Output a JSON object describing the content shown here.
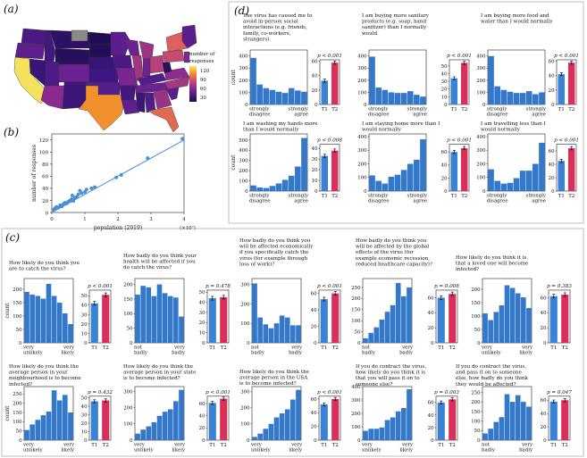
{
  "panel_letters": {
    "a": "(a)",
    "b": "(b)",
    "c": "(c)",
    "d": "(d)"
  },
  "map": {
    "legend_title": "number of responses",
    "legend_ticks": [
      "120",
      "90",
      "60",
      "30"
    ]
  },
  "chart_data": [
    {
      "id": "b",
      "type": "scatter",
      "xlabel": "population (2019)",
      "x_exponent": "(×10⁷)",
      "ylabel": "number of responses",
      "xlim": [
        0,
        4
      ],
      "ylim": [
        0,
        130
      ],
      "xticks": [
        0,
        1,
        2,
        3,
        4
      ],
      "yticks": [
        0,
        20,
        40,
        60,
        80,
        100,
        120
      ],
      "x": [
        0.06,
        0.1,
        0.14,
        0.2,
        0.25,
        0.3,
        0.35,
        0.4,
        0.45,
        0.5,
        0.55,
        0.6,
        0.65,
        0.7,
        0.75,
        0.8,
        0.9,
        1.0,
        1.05,
        1.2,
        1.3,
        0.62,
        0.72,
        0.85,
        1.95,
        2.1,
        2.9,
        3.95
      ],
      "y": [
        5,
        7,
        9,
        8,
        12,
        10,
        14,
        16,
        15,
        18,
        20,
        22,
        19,
        24,
        26,
        30,
        32,
        34,
        38,
        40,
        42,
        28,
        25,
        36,
        58,
        62,
        90,
        122
      ],
      "fit": {
        "x": [
          0,
          4
        ],
        "y": [
          0,
          120
        ]
      }
    },
    {
      "id": "d1",
      "type": "bar",
      "question": [
        "The virus has caused me to",
        "avoid in-person social",
        "interactions (e.g. friends,",
        "family, co-workers,",
        "strangers)."
      ],
      "ylabel": "count",
      "ylim": [
        0,
        450
      ],
      "yticks": [
        0,
        100,
        200,
        300,
        400
      ],
      "values": [
        385,
        165,
        135,
        120,
        105,
        95,
        135,
        115,
        105
      ],
      "left_label": [
        "strongly",
        "disagree"
      ],
      "right_label": [
        "strongly",
        "agree"
      ],
      "t1t2": {
        "p": "p < 0.001",
        "T1": 33,
        "T2": 58,
        "ylim": [
          0,
          62
        ],
        "yticks": [
          0,
          20,
          40,
          60
        ],
        "labels": [
          "T1",
          "T2"
        ]
      }
    },
    {
      "id": "d2",
      "type": "bar",
      "question": [
        "I am buying more sanitary",
        "products (e.g. soap, hand",
        "sanitizer) than I normally",
        "would"
      ],
      "ylabel": "",
      "ylim": [
        0,
        450
      ],
      "yticks": [
        0,
        100,
        200,
        300,
        400
      ],
      "values": [
        395,
        140,
        120,
        100,
        95,
        95,
        110,
        80,
        65
      ],
      "left_label": [
        "strongly",
        "disagree"
      ],
      "right_label": [
        "strongly",
        "agree"
      ],
      "t1t2": {
        "p": "p < 0.001",
        "T1": 34,
        "T2": 54,
        "ylim": [
          0,
          58
        ],
        "yticks": [
          0,
          10,
          20,
          30,
          40,
          50
        ],
        "labels": [
          "T1",
          "T2"
        ]
      }
    },
    {
      "id": "d3",
      "type": "bar",
      "question": [
        "I am buying more food and",
        "water than I would normally"
      ],
      "ylabel": "",
      "ylim": [
        0,
        450
      ],
      "yticks": [
        0,
        100,
        200,
        300,
        400
      ],
      "values": [
        400,
        150,
        120,
        105,
        95,
        95,
        110,
        85,
        100
      ],
      "left_label": [
        "strongly",
        "disagree"
      ],
      "right_label": [
        "strongly",
        "agree"
      ],
      "t1t2": {
        "p": "p < 0.001",
        "T1": 42,
        "T2": 58,
        "ylim": [
          0,
          62
        ],
        "yticks": [
          0,
          20,
          40,
          60
        ],
        "labels": [
          "T1",
          "T2"
        ]
      }
    },
    {
      "id": "d4",
      "type": "bar",
      "question": [
        "I am washing my hands more",
        "than I would normally"
      ],
      "ylabel": "count",
      "ylim": [
        0,
        560
      ],
      "yticks": [
        0,
        100,
        200,
        300,
        400,
        500
      ],
      "values": [
        55,
        35,
        30,
        50,
        75,
        110,
        150,
        240,
        520
      ],
      "left_label": [
        "strongly",
        "disagree"
      ],
      "right_label": [
        "strongly",
        "agree"
      ],
      "t1t2": {
        "p": "p < 0.008",
        "T1": 33,
        "T2": 38,
        "ylim": [
          0,
          44
        ],
        "yticks": [
          0,
          10,
          20,
          30,
          40
        ],
        "labels": [
          "T1",
          "T2"
        ]
      }
    },
    {
      "id": "d5",
      "type": "bar",
      "question": [
        "I am staying home more than I",
        "would normally"
      ],
      "ylabel": "",
      "ylim": [
        0,
        420
      ],
      "yticks": [
        0,
        100,
        200,
        300,
        400
      ],
      "values": [
        115,
        75,
        55,
        105,
        120,
        155,
        200,
        230,
        380
      ],
      "left_label": [
        "strongly",
        "disagree"
      ],
      "right_label": [
        "strongly",
        "agree"
      ],
      "t1t2": {
        "p": "p < 0.001",
        "T1": 60,
        "T2": 66,
        "ylim": [
          0,
          72
        ],
        "yticks": [
          0,
          20,
          40,
          60
        ],
        "labels": [
          "T1",
          "T2"
        ]
      }
    },
    {
      "id": "d6",
      "type": "bar",
      "question": [
        "I am travelling less than I",
        "would normally"
      ],
      "ylabel": "",
      "ylim": [
        0,
        420
      ],
      "yticks": [
        0,
        100,
        200,
        300,
        400
      ],
      "values": [
        160,
        75,
        55,
        60,
        95,
        150,
        150,
        200,
        355
      ],
      "left_label": [
        "strongly",
        "disagree"
      ],
      "right_label": [
        "strongly",
        "agree"
      ],
      "t1t2": {
        "p": "p < 0.001",
        "T1": 45,
        "T2": 64,
        "ylim": [
          0,
          70
        ],
        "yticks": [
          0,
          20,
          40,
          60
        ],
        "labels": [
          "T1",
          "T2"
        ]
      }
    },
    {
      "id": "c1",
      "type": "bar",
      "question": [
        "How likely do you think you",
        "are to catch the virus?"
      ],
      "ylabel": "count",
      "ylim": [
        0,
        240
      ],
      "yticks": [
        0,
        50,
        100,
        150,
        200
      ],
      "values": [
        190,
        180,
        175,
        165,
        220,
        175,
        150,
        110,
        70
      ],
      "left_label": [
        "very",
        "unlikely"
      ],
      "right_label": [
        "very",
        "likely"
      ],
      "t1t2": {
        "p": "p < 0.001",
        "T1": 42,
        "T2": 51,
        "ylim": [
          0,
          56
        ],
        "yticks": [
          0,
          10,
          20,
          30,
          40,
          50
        ],
        "labels": [
          "T1",
          "T2"
        ]
      }
    },
    {
      "id": "c2",
      "type": "bar",
      "question": [
        "How badly do you think your",
        "health will be affected if you",
        "do catch the virus?"
      ],
      "ylabel": "",
      "ylim": [
        0,
        220
      ],
      "yticks": [
        0,
        50,
        100,
        150,
        200
      ],
      "values": [
        165,
        195,
        190,
        160,
        200,
        170,
        160,
        155,
        90
      ],
      "left_label": [
        "not",
        "badly"
      ],
      "right_label": [
        "very",
        "badly"
      ],
      "t1t2": {
        "p": "p = 0.478",
        "T1": 44,
        "T2": 45,
        "ylim": [
          0,
          52
        ],
        "yticks": [
          0,
          10,
          20,
          30,
          40,
          50
        ],
        "labels": [
          "T1",
          "T2"
        ]
      }
    },
    {
      "id": "c3",
      "type": "bar",
      "question": [
        "How badly do you think you",
        "will be affected economically",
        "if you specifically catch the",
        "virus (for example through",
        "loss of work)?"
      ],
      "ylabel": "",
      "ylim": [
        0,
        330
      ],
      "yticks": [
        0,
        100,
        200,
        300
      ],
      "values": [
        305,
        130,
        95,
        75,
        100,
        140,
        130,
        90,
        90
      ],
      "left_label": [
        "not",
        "badly"
      ],
      "right_label": [
        "very",
        "badly"
      ],
      "t1t2": {
        "p": "p < 0.001",
        "T1": 53,
        "T2": 60,
        "ylim": [
          0,
          64
        ],
        "yticks": [
          0,
          20,
          40,
          60
        ],
        "labels": [
          "T1",
          "T2"
        ]
      }
    },
    {
      "id": "c4",
      "type": "bar",
      "question": [
        "How badly do you think you",
        "will be affected by the global",
        "effects of the virus (for",
        "example economic recession,",
        "reduced healthcare capacity)?"
      ],
      "ylabel": "",
      "ylim": [
        0,
        290
      ],
      "yticks": [
        0,
        50,
        100,
        150,
        200,
        250
      ],
      "values": [
        20,
        45,
        70,
        105,
        140,
        170,
        270,
        210,
        250
      ],
      "left_label": [
        "not",
        "badly"
      ],
      "right_label": [
        "very",
        "badly"
      ],
      "t1t2": {
        "p": "p = 0.008",
        "T1": 60,
        "T2": 65,
        "ylim": [
          0,
          70
        ],
        "yticks": [
          0,
          20,
          40,
          60
        ],
        "labels": [
          "T1",
          "T2"
        ]
      }
    },
    {
      "id": "c5",
      "type": "bar",
      "question": [
        "How likely do you think it is",
        "that a loved one will become",
        "infected?"
      ],
      "ylabel": "",
      "ylim": [
        0,
        240
      ],
      "yticks": [
        0,
        50,
        100,
        150,
        200
      ],
      "values": [
        110,
        85,
        115,
        140,
        215,
        205,
        185,
        170,
        130
      ],
      "left_label": [
        "very",
        "unlikely"
      ],
      "right_label": [
        "very",
        "likely"
      ],
      "t1t2": {
        "p": "p = 0.383",
        "T1": 62,
        "T2": 64,
        "ylim": [
          0,
          70
        ],
        "yticks": [
          0,
          20,
          40,
          60
        ],
        "labels": [
          "T1",
          "T2"
        ]
      }
    },
    {
      "id": "c6",
      "type": "bar",
      "question": [
        "How likely do you think the",
        "average person in your",
        "neighbourhood is to become",
        "infected?"
      ],
      "ylabel": "count",
      "ylim": [
        0,
        290
      ],
      "yticks": [
        0,
        50,
        100,
        150,
        200,
        250
      ],
      "values": [
        55,
        85,
        110,
        135,
        155,
        270,
        215,
        245,
        150
      ],
      "left_label": [
        "very",
        "unlikely"
      ],
      "right_label": [
        "very",
        "likely"
      ],
      "t1t2": {
        "p": "p = 0.432",
        "T1": 46,
        "T2": 47,
        "ylim": [
          0,
          52
        ],
        "yticks": [
          0,
          10,
          20,
          30,
          40,
          50
        ],
        "labels": [
          "T1",
          "T2"
        ]
      }
    },
    {
      "id": "c7",
      "type": "bar",
      "question": [
        "How likely do you think the",
        "average person in your state",
        "is to become infected?"
      ],
      "ylabel": "",
      "ylim": [
        0,
        330
      ],
      "yticks": [
        0,
        100,
        200,
        300
      ],
      "values": [
        40,
        65,
        85,
        110,
        150,
        175,
        190,
        240,
        310
      ],
      "left_label": [
        "very",
        "unlikely"
      ],
      "right_label": [
        "very",
        "likely"
      ],
      "t1t2": {
        "p": "p < 0.001",
        "T1": 61,
        "T2": 68,
        "ylim": [
          0,
          72
        ],
        "yticks": [
          0,
          20,
          40,
          60
        ],
        "labels": [
          "T1",
          "T2"
        ]
      }
    },
    {
      "id": "c8",
      "type": "bar",
      "question": [
        "How likely do you think the",
        "average person in the USA",
        "is to become infected?"
      ],
      "ylabel": "",
      "ylim": [
        0,
        330
      ],
      "yticks": [
        0,
        100,
        200,
        300
      ],
      "values": [
        20,
        40,
        70,
        100,
        140,
        165,
        190,
        250,
        310
      ],
      "left_label": [
        "very",
        "unlikely"
      ],
      "right_label": [
        "very",
        "likely"
      ],
      "t1t2": {
        "p": "p < 0.001",
        "T1": 52,
        "T2": 60,
        "ylim": [
          0,
          64
        ],
        "yticks": [
          0,
          20,
          40,
          60
        ],
        "labels": [
          "T1",
          "T2"
        ]
      }
    },
    {
      "id": "c9",
      "type": "bar",
      "question": [
        "If you do contract the virus,",
        "how likely do you think it is",
        "that you will pass it on to",
        "someone else?"
      ],
      "ylabel": "",
      "ylim": [
        0,
        400
      ],
      "yticks": [
        0,
        100,
        200,
        300,
        400
      ],
      "values": [
        70,
        85,
        85,
        95,
        150,
        170,
        215,
        240,
        380
      ],
      "left_label": [
        "very",
        "unlikely"
      ],
      "right_label": [
        "very",
        "likely"
      ],
      "t1t2": {
        "p": "p = 0.003",
        "T1": 60,
        "T2": 65,
        "ylim": [
          0,
          70
        ],
        "yticks": [
          0,
          20,
          40,
          60
        ],
        "labels": [
          "T1",
          "T2"
        ]
      }
    },
    {
      "id": "c10",
      "type": "bar",
      "question": [
        "If you do contract the virus,",
        "and pass it on to someone",
        "else, how badly do you think",
        "they would be affected?"
      ],
      "ylabel": "",
      "ylim": [
        0,
        280
      ],
      "yticks": [
        0,
        50,
        100,
        150,
        200,
        250
      ],
      "values": [
        35,
        60,
        95,
        120,
        240,
        200,
        235,
        200,
        175
      ],
      "left_label": [
        "not",
        "badly"
      ],
      "right_label": [
        "very",
        "badly"
      ],
      "t1t2": {
        "p": "p = 0.047",
        "T1": 58,
        "T2": 60,
        "ylim": [
          0,
          66
        ],
        "yticks": [
          0,
          20,
          40,
          60
        ],
        "labels": [
          "T1",
          "T2"
        ]
      }
    }
  ],
  "colors": {
    "hist": "#3478c9",
    "t1": "#3a82d6",
    "t2": "#d8305a",
    "scatter": "#4a90d2",
    "frame": "#bdbdbd"
  }
}
